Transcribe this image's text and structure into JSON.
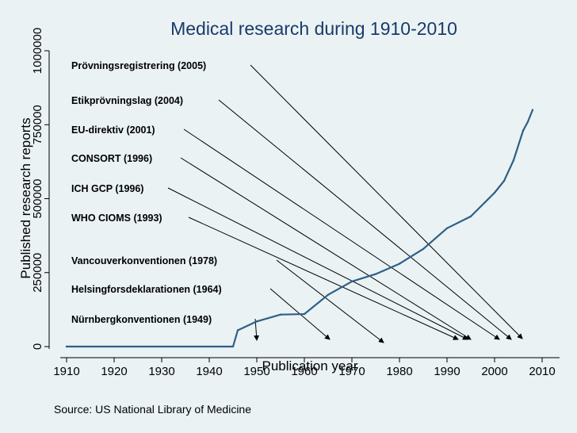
{
  "chart_data": {
    "type": "line",
    "title": "Medical research during 1910-2010",
    "xlabel": "Publication year",
    "ylabel": "Published research reports",
    "xlim": [
      1910,
      2010
    ],
    "ylim": [
      0,
      1000000
    ],
    "xticks": [
      1910,
      1920,
      1930,
      1940,
      1950,
      1960,
      1970,
      1980,
      1990,
      2000,
      2010
    ],
    "yticks": [
      0,
      250000,
      500000,
      750000,
      1000000
    ],
    "grid": false,
    "series": [
      {
        "name": "Published research reports",
        "x": [
          1910,
          1945,
          1946,
          1950,
          1955,
          1960,
          1965,
          1970,
          1975,
          1980,
          1985,
          1990,
          1995,
          2000,
          2002,
          2004,
          2006,
          2007,
          2008
        ],
        "y": [
          0,
          0,
          55000,
          85000,
          108000,
          110000,
          175000,
          220000,
          245000,
          280000,
          330000,
          400000,
          440000,
          520000,
          560000,
          630000,
          730000,
          760000,
          800000
        ]
      }
    ],
    "annotations": [
      {
        "label": "Prövningsregistrering (2005)",
        "year": 2005
      },
      {
        "label": "Etikprövningslag (2004)",
        "year": 2004
      },
      {
        "label": "EU-direktiv (2001)",
        "year": 2001
      },
      {
        "label": "CONSORT (1996)",
        "year": 1996
      },
      {
        "label": "ICH GCP (1996)",
        "year": 1996
      },
      {
        "label": "WHO CIOMS (1993)",
        "year": 1993
      },
      {
        "label": "Vancouverkonventionen (1978)",
        "year": 1978
      },
      {
        "label": "Helsingforsdeklarationen (1964)",
        "year": 1964
      },
      {
        "label": "Nürnbergkonventionen (1949)",
        "year": 1949
      }
    ],
    "source": "Source: US National Library of Medicine"
  },
  "colors": {
    "background": "#eaf2f3",
    "title": "#1a3a6b",
    "line": "#2e5f88",
    "axis": "#000000"
  }
}
